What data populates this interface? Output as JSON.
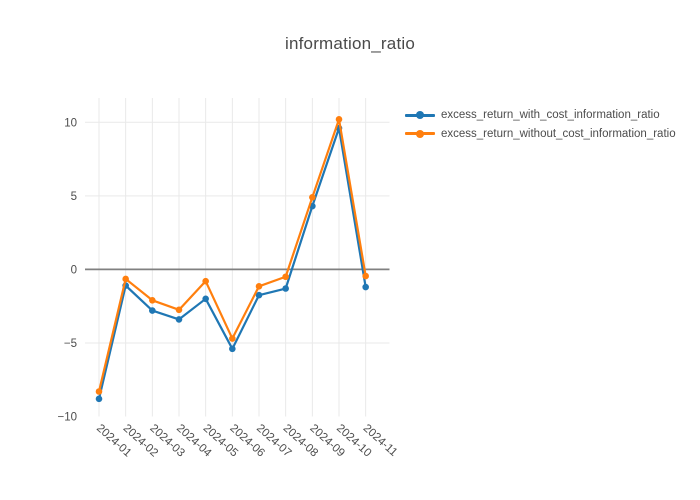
{
  "title": "information_ratio",
  "colors": {
    "series_with_cost": "#1f77b4",
    "series_without_cost": "#ff7f0e",
    "text": "#4a4a4a",
    "grid": "#e9e9e9",
    "zeroline": "#808080",
    "background": "#ffffff"
  },
  "chart_data": {
    "type": "line",
    "title": "information_ratio",
    "mode": "lines+markers",
    "grid": true,
    "zeroline": true,
    "legend_position": "top-right-outside",
    "x_tick_angle": 42,
    "categories": [
      "2024-01",
      "2024-02",
      "2024-03",
      "2024-04",
      "2024-05",
      "2024-06",
      "2024-07",
      "2024-08",
      "2024-09",
      "2024-10",
      "2024-11"
    ],
    "series": [
      {
        "name": "excess_return_with_cost_information_ratio",
        "color": "#1f77b4",
        "values": [
          -8.8,
          -1.1,
          -2.8,
          -3.4,
          -2.0,
          -5.4,
          -1.75,
          -1.3,
          4.3,
          9.6,
          -1.2
        ]
      },
      {
        "name": "excess_return_without_cost_information_ratio",
        "color": "#ff7f0e",
        "values": [
          -8.3,
          -0.65,
          -2.1,
          -2.75,
          -0.8,
          -4.7,
          -1.15,
          -0.5,
          4.9,
          10.2,
          -0.45
        ]
      }
    ],
    "yticks": [
      -10,
      -5,
      0,
      5,
      10
    ],
    "ylim": [
      -10,
      11.65
    ],
    "xlabel": "",
    "ylabel": ""
  }
}
